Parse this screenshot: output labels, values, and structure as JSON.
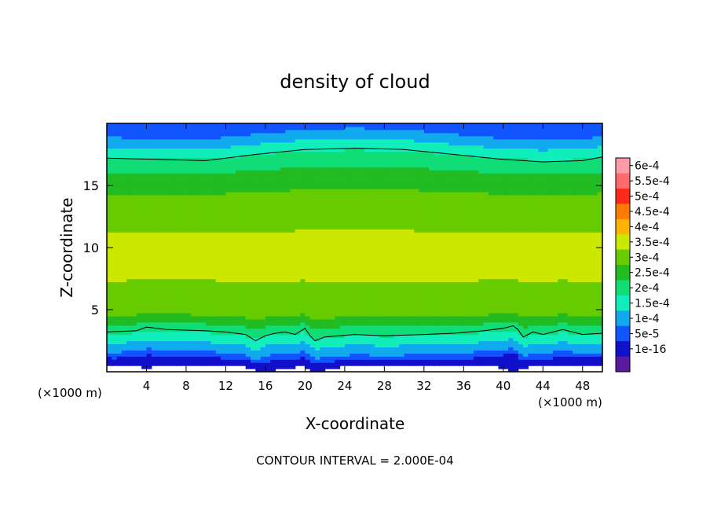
{
  "chart_data": {
    "type": "heatmap",
    "title": "density of cloud",
    "xlabel": "X-coordinate",
    "ylabel": "Z-coordinate",
    "x_unit": "(×1000 m)",
    "x_unit_right": "(×1000 m)",
    "footer": "CONTOUR INTERVAL = 2.000E-04",
    "xlim": [
      0,
      50
    ],
    "ylim": [
      0,
      20
    ],
    "x_ticks": [
      4,
      8,
      12,
      16,
      20,
      24,
      28,
      32,
      36,
      40,
      44,
      48
    ],
    "x_tick_labels": [
      "4",
      "8",
      "12",
      "16",
      "20",
      "24",
      "28",
      "32",
      "36",
      "40",
      "44",
      "48"
    ],
    "y_ticks": [
      5,
      10,
      15
    ],
    "y_tick_labels": [
      "5",
      "10",
      "15"
    ],
    "contour_interval": 0.0002,
    "colorbar": {
      "labels": [
        "6e-4",
        "5.5e-4",
        "5e-4",
        "4.5e-4",
        "4e-4",
        "3.5e-4",
        "3e-4",
        "2.5e-4",
        "2e-4",
        "1.5e-4",
        "1e-4",
        "5e-5",
        "1e-16"
      ],
      "colors": [
        "#ff9aa8",
        "#ff6b6b",
        "#ff2a1a",
        "#ff7a00",
        "#ffb400",
        "#cce800",
        "#66cc00",
        "#22bb22",
        "#11dd77",
        "#11eebb",
        "#11aaee",
        "#1155ff",
        "#1111cc",
        "#5a1aa0"
      ]
    },
    "field_profile_z": [
      0.0,
      0.5,
      1.0,
      1.5,
      2.0,
      2.5,
      3.0,
      3.5,
      4.0,
      4.5,
      5.0,
      6.0,
      8.0,
      10.0,
      12.0,
      14.0,
      15.0,
      16.0,
      17.0,
      17.5,
      18.0,
      18.5,
      19.0,
      19.5,
      20.0
    ],
    "field_profile_value": [
      0.0,
      2e-05,
      5e-05,
      0.0001,
      0.00013,
      0.00017,
      0.0002,
      0.00023,
      0.00027,
      0.0003,
      0.00031,
      0.00033,
      0.00036,
      0.00037,
      0.00034,
      0.00031,
      0.00029,
      0.00026,
      0.00022,
      0.0002,
      0.00017,
      0.00014,
      0.00011,
      8e-05,
      6e-05
    ],
    "contour_upper_z": [
      [
        0,
        17.2
      ],
      [
        5,
        17.1
      ],
      [
        10,
        17.0
      ],
      [
        15,
        17.5
      ],
      [
        20,
        17.9
      ],
      [
        25,
        18.0
      ],
      [
        30,
        17.9
      ],
      [
        35,
        17.5
      ],
      [
        40,
        17.1
      ],
      [
        44,
        16.9
      ],
      [
        48,
        17.0
      ],
      [
        50,
        17.3
      ]
    ],
    "contour_lower_z": [
      [
        0,
        3.2
      ],
      [
        3,
        3.3
      ],
      [
        4,
        3.6
      ],
      [
        6,
        3.4
      ],
      [
        10,
        3.3
      ],
      [
        12,
        3.2
      ],
      [
        14,
        3.0
      ],
      [
        15,
        2.5
      ],
      [
        16,
        2.9
      ],
      [
        17,
        3.1
      ],
      [
        18,
        3.2
      ],
      [
        19,
        3.0
      ],
      [
        20,
        3.5
      ],
      [
        20.5,
        2.9
      ],
      [
        21,
        2.5
      ],
      [
        22,
        2.8
      ],
      [
        25,
        3.0
      ],
      [
        28,
        2.9
      ],
      [
        32,
        3.0
      ],
      [
        35,
        3.1
      ],
      [
        38,
        3.3
      ],
      [
        40,
        3.5
      ],
      [
        41,
        3.7
      ],
      [
        41.5,
        3.4
      ],
      [
        42,
        2.8
      ],
      [
        43,
        3.2
      ],
      [
        44,
        3.0
      ],
      [
        46,
        3.4
      ],
      [
        48,
        3.0
      ],
      [
        50,
        3.1
      ]
    ],
    "cloud_base_z": [
      [
        0,
        0.55
      ],
      [
        3,
        0.45
      ],
      [
        4,
        0.2
      ],
      [
        5,
        0.5
      ],
      [
        10,
        0.6
      ],
      [
        14,
        0.4
      ],
      [
        15,
        0.1
      ],
      [
        16,
        0.0
      ],
      [
        18,
        0.3
      ],
      [
        20,
        0.5
      ],
      [
        20.5,
        0.2
      ],
      [
        21,
        0.0
      ],
      [
        22,
        0.15
      ],
      [
        24,
        0.45
      ],
      [
        28,
        0.5
      ],
      [
        32,
        0.4
      ],
      [
        36,
        0.5
      ],
      [
        39,
        0.45
      ],
      [
        40,
        0.3
      ],
      [
        41,
        0.0
      ],
      [
        42,
        0.3
      ],
      [
        43,
        0.5
      ],
      [
        44,
        0.4
      ],
      [
        46,
        0.5
      ],
      [
        48,
        0.6
      ],
      [
        50,
        0.6
      ]
    ]
  }
}
